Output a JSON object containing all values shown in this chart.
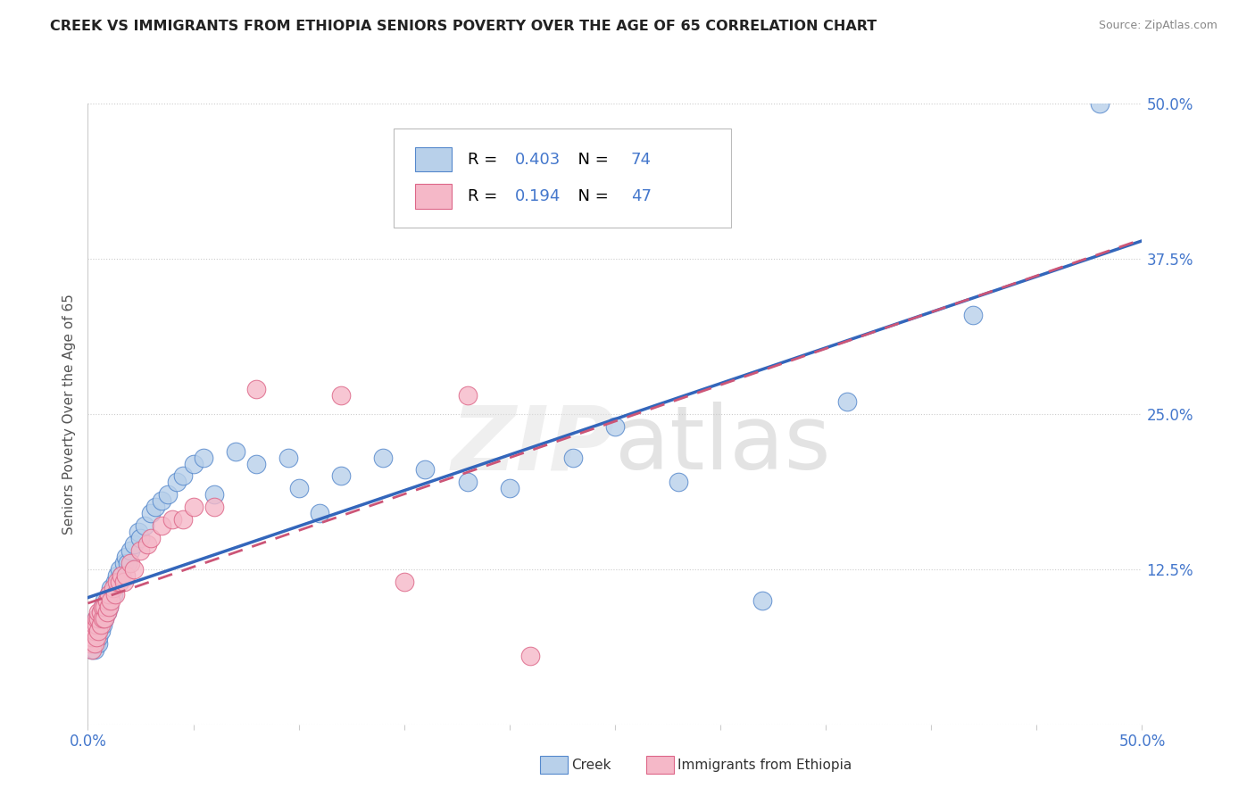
{
  "title": "CREEK VS IMMIGRANTS FROM ETHIOPIA SENIORS POVERTY OVER THE AGE OF 65 CORRELATION CHART",
  "source": "Source: ZipAtlas.com",
  "ylabel": "Seniors Poverty Over the Age of 65",
  "xlim": [
    0.0,
    0.5
  ],
  "ylim": [
    0.0,
    0.5
  ],
  "ytick_positions": [
    0.0,
    0.125,
    0.25,
    0.375,
    0.5
  ],
  "yticklabels_right": [
    "0.0%",
    "12.5%",
    "25.0%",
    "37.5%",
    "50.0%"
  ],
  "creek_R": "0.403",
  "creek_N": "74",
  "ethiopia_R": "0.194",
  "ethiopia_N": "47",
  "creek_fill": "#b8d0ea",
  "ethiopia_fill": "#f5b8c8",
  "creek_edge": "#5588cc",
  "ethiopia_edge": "#dd6688",
  "creek_line": "#3366bb",
  "ethiopia_line": "#cc5577",
  "title_color": "#222222",
  "tick_color": "#4477cc",
  "grid_color": "#cccccc",
  "bg_color": "#ffffff",
  "creek_x": [
    0.001,
    0.001,
    0.001,
    0.002,
    0.002,
    0.002,
    0.002,
    0.003,
    0.003,
    0.003,
    0.003,
    0.003,
    0.004,
    0.004,
    0.004,
    0.004,
    0.004,
    0.005,
    0.005,
    0.005,
    0.005,
    0.006,
    0.006,
    0.006,
    0.007,
    0.007,
    0.007,
    0.008,
    0.008,
    0.008,
    0.009,
    0.009,
    0.01,
    0.01,
    0.011,
    0.012,
    0.013,
    0.014,
    0.015,
    0.016,
    0.017,
    0.018,
    0.019,
    0.02,
    0.022,
    0.024,
    0.025,
    0.027,
    0.03,
    0.032,
    0.035,
    0.038,
    0.042,
    0.045,
    0.05,
    0.055,
    0.06,
    0.07,
    0.08,
    0.095,
    0.1,
    0.11,
    0.12,
    0.14,
    0.16,
    0.18,
    0.2,
    0.23,
    0.25,
    0.28,
    0.32,
    0.36,
    0.42,
    0.48
  ],
  "creek_y": [
    0.065,
    0.07,
    0.075,
    0.06,
    0.065,
    0.07,
    0.075,
    0.06,
    0.065,
    0.07,
    0.075,
    0.08,
    0.065,
    0.07,
    0.075,
    0.08,
    0.085,
    0.065,
    0.07,
    0.075,
    0.08,
    0.075,
    0.085,
    0.09,
    0.08,
    0.09,
    0.095,
    0.085,
    0.095,
    0.1,
    0.09,
    0.1,
    0.095,
    0.105,
    0.11,
    0.105,
    0.115,
    0.12,
    0.125,
    0.12,
    0.13,
    0.135,
    0.13,
    0.14,
    0.145,
    0.155,
    0.15,
    0.16,
    0.17,
    0.175,
    0.18,
    0.185,
    0.195,
    0.2,
    0.21,
    0.215,
    0.185,
    0.22,
    0.21,
    0.215,
    0.19,
    0.17,
    0.2,
    0.215,
    0.205,
    0.195,
    0.19,
    0.215,
    0.24,
    0.195,
    0.1,
    0.26,
    0.33,
    0.5
  ],
  "ethiopia_x": [
    0.001,
    0.001,
    0.002,
    0.002,
    0.002,
    0.003,
    0.003,
    0.003,
    0.004,
    0.004,
    0.004,
    0.005,
    0.005,
    0.005,
    0.006,
    0.006,
    0.007,
    0.007,
    0.008,
    0.008,
    0.009,
    0.009,
    0.01,
    0.01,
    0.011,
    0.012,
    0.013,
    0.014,
    0.015,
    0.016,
    0.017,
    0.018,
    0.02,
    0.022,
    0.025,
    0.028,
    0.03,
    0.035,
    0.04,
    0.045,
    0.05,
    0.06,
    0.08,
    0.12,
    0.15,
    0.18,
    0.21
  ],
  "ethiopia_y": [
    0.065,
    0.07,
    0.06,
    0.07,
    0.075,
    0.065,
    0.075,
    0.08,
    0.07,
    0.08,
    0.085,
    0.075,
    0.085,
    0.09,
    0.08,
    0.09,
    0.085,
    0.095,
    0.085,
    0.095,
    0.09,
    0.1,
    0.095,
    0.105,
    0.1,
    0.11,
    0.105,
    0.115,
    0.115,
    0.12,
    0.115,
    0.12,
    0.13,
    0.125,
    0.14,
    0.145,
    0.15,
    0.16,
    0.165,
    0.165,
    0.175,
    0.175,
    0.27,
    0.265,
    0.115,
    0.265,
    0.055
  ]
}
